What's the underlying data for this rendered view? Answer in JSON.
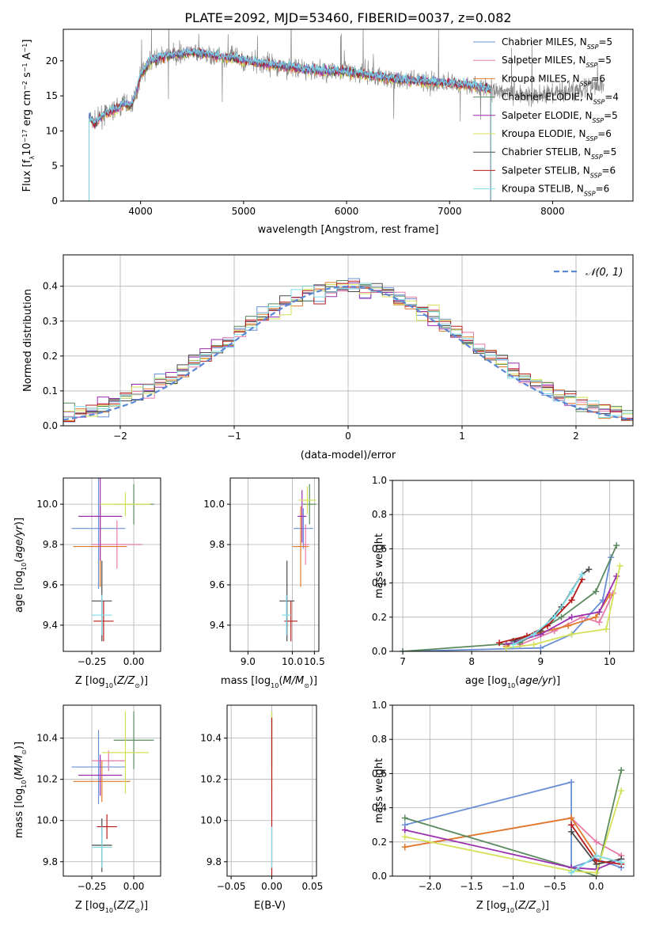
{
  "figure_title": "PLATE=2092, MJD=53460, FIBERID=0037, z=0.082",
  "colors": {
    "chabrier_miles": "#6a8fd8",
    "salpeter_miles": "#e879a8",
    "kroupa_miles": "#e07a2a",
    "chabrier_elodie": "#5b8a5f",
    "salpeter_elodie": "#9b2fae",
    "kroupa_elodie": "#d4e157",
    "chabrier_stelib": "#4a4a4a",
    "salpeter_stelib": "#b71c1c",
    "kroupa_stelib": "#80deea",
    "spectrum": "#888888",
    "normal": "#5a87d6",
    "grid": "#b0b0b0"
  },
  "legend_spectrum": [
    {
      "prefix": "Chabrier MILES, N",
      "sub": "SSP",
      "suffix": "=5",
      "color": "chabrier_miles"
    },
    {
      "prefix": "Salpeter MILES, N",
      "sub": "SSP",
      "suffix": "=5",
      "color": "salpeter_miles"
    },
    {
      "prefix": "Kroupa MILES, N",
      "sub": "SSP",
      "suffix": "=6",
      "color": "kroupa_miles"
    },
    {
      "prefix": "Chabrier ELODIE, N",
      "sub": "SSP",
      "suffix": "=4",
      "color": "chabrier_elodie"
    },
    {
      "prefix": "Salpeter ELODIE, N",
      "sub": "SSP",
      "suffix": "=5",
      "color": "salpeter_elodie"
    },
    {
      "prefix": "Kroupa ELODIE, N",
      "sub": "SSP",
      "suffix": "=6",
      "color": "kroupa_elodie"
    },
    {
      "prefix": "Chabrier STELIB, N",
      "sub": "SSP",
      "suffix": "=5",
      "color": "chabrier_stelib"
    },
    {
      "prefix": "Salpeter STELIB, N",
      "sub": "SSP",
      "suffix": "=6",
      "color": "salpeter_stelib"
    },
    {
      "prefix": "Kroupa STELIB, N",
      "sub": "SSP",
      "suffix": "=6",
      "color": "kroupa_stelib"
    }
  ],
  "chart_data": [
    {
      "id": "spectrum",
      "type": "line",
      "xlabel": "wavelength [Angstrom, rest frame]",
      "ylabel": "Flux [fλ10⁻¹⁷ erg cm⁻² s⁻¹ A⁻¹]",
      "xlim": [
        3250,
        8780
      ],
      "ylim": [
        0,
        24.5
      ],
      "xticks": [
        4000,
        5000,
        6000,
        7000,
        8000
      ],
      "yticks": [
        0,
        5,
        10,
        15,
        20
      ],
      "grid": false,
      "legend_position": "right",
      "continuum": {
        "x": [
          3500,
          3550,
          3650,
          3750,
          3850,
          3900,
          3950,
          4000,
          4050,
          4100,
          4200,
          4300,
          4400,
          4500,
          4600,
          4700,
          4800,
          4900,
          5000,
          5200,
          5400,
          5600,
          5800,
          6000,
          6200,
          6400,
          6600,
          6800,
          7000,
          7200,
          7400,
          7600,
          7800,
          8000,
          8200,
          8400
        ],
        "y": [
          12,
          11,
          12.5,
          13,
          14,
          13.5,
          15,
          18,
          19,
          20,
          20.5,
          20.8,
          21,
          21.2,
          21,
          20.8,
          20.5,
          20.5,
          20,
          19.6,
          19.2,
          18.8,
          18.5,
          18.5,
          18,
          17.5,
          17.2,
          17,
          16.8,
          16.5,
          16,
          15.5,
          15,
          15.3,
          15.8,
          16.5
        ]
      },
      "model_range": [
        3500,
        7400
      ],
      "data_range": [
        3500,
        8500
      ]
    },
    {
      "id": "residuals",
      "type": "histogram",
      "xlabel": "(data-model)/error",
      "ylabel": "Normed distribution",
      "xlim": [
        -2.5,
        2.5
      ],
      "ylim": [
        0,
        0.49
      ],
      "xticks": [
        -2,
        -1,
        0,
        1,
        2
      ],
      "yticks": [
        0,
        0.1,
        0.2,
        0.3,
        0.4
      ],
      "grid": true,
      "bin_width": 0.1,
      "legend_label": "𝒩(0, 1)",
      "legend_position": "top-right"
    },
    {
      "id": "age_vs_Z",
      "type": "scatter",
      "xlabel": "Z [log₁₀(Z/Z⊙)]",
      "ylabel": "age  [log₁₀(age/yr)]",
      "xlim": [
        -0.42,
        0.16
      ],
      "ylim": [
        9.27,
        10.13
      ],
      "xticks": [
        -0.25,
        0.0
      ],
      "ytick_values": [
        9.4,
        9.6,
        9.8,
        10.0
      ],
      "grid": true,
      "points": [
        {
          "model": "chabrier_miles",
          "x": -0.21,
          "xerr": 0.16,
          "y": 9.88,
          "yerr": 0.3
        },
        {
          "model": "salpeter_miles",
          "x": -0.1,
          "xerr": 0.15,
          "y": 9.8,
          "yerr": 0.12
        },
        {
          "model": "kroupa_miles",
          "x": -0.2,
          "xerr": 0.16,
          "y": 9.79,
          "yerr": 0.2
        },
        {
          "model": "chabrier_elodie",
          "x": 0.0,
          "xerr": 0.12,
          "y": 10.0,
          "yerr": 0.1
        },
        {
          "model": "salpeter_elodie",
          "x": -0.2,
          "xerr": 0.13,
          "y": 9.94,
          "yerr": 0.22
        },
        {
          "model": "kroupa_elodie",
          "x": -0.05,
          "xerr": 0.15,
          "y": 10.0,
          "yerr": 0.06
        },
        {
          "model": "chabrier_stelib",
          "x": -0.19,
          "xerr": 0.06,
          "y": 9.52,
          "yerr": 0.2
        },
        {
          "model": "salpeter_stelib",
          "x": -0.18,
          "xerr": 0.06,
          "y": 9.42,
          "yerr": 0.1
        },
        {
          "model": "kroupa_stelib",
          "x": -0.19,
          "xerr": 0.06,
          "y": 9.45,
          "yerr": 0.1
        }
      ]
    },
    {
      "id": "age_vs_mass",
      "type": "scatter",
      "xlabel": "mass [log₁₀(M/M⊙)]",
      "xlim": [
        8.6,
        10.6
      ],
      "ylim": [
        9.27,
        10.13
      ],
      "xticks": [
        9.0,
        10.0,
        10.5
      ],
      "ytick_values": [
        9.4,
        9.6,
        9.8,
        10.0
      ],
      "grid": true,
      "points": [
        {
          "model": "chabrier_miles",
          "x": 10.25,
          "xerr": 0.22,
          "y": 9.88,
          "yerr": 0.1
        },
        {
          "model": "salpeter_miles",
          "x": 10.3,
          "xerr": 0.08,
          "y": 9.8,
          "yerr": 0.1
        },
        {
          "model": "kroupa_miles",
          "x": 10.19,
          "xerr": 0.18,
          "y": 9.79,
          "yerr": 0.2
        },
        {
          "model": "chabrier_elodie",
          "x": 10.39,
          "xerr": 0.15,
          "y": 10.0,
          "yerr": 0.1
        },
        {
          "model": "salpeter_elodie",
          "x": 10.22,
          "xerr": 0.1,
          "y": 9.94,
          "yerr": 0.13
        },
        {
          "model": "kroupa_elodie",
          "x": 10.34,
          "xerr": 0.2,
          "y": 10.02,
          "yerr": 0.07
        },
        {
          "model": "chabrier_stelib",
          "x": 9.88,
          "xerr": 0.17,
          "y": 9.52,
          "yerr": 0.2
        },
        {
          "model": "salpeter_stelib",
          "x": 9.97,
          "xerr": 0.15,
          "y": 9.42,
          "yerr": 0.1
        },
        {
          "model": "kroupa_stelib",
          "x": 9.87,
          "xerr": 0.1,
          "y": 9.45,
          "yerr": 0.1
        }
      ]
    },
    {
      "id": "weight_vs_age",
      "type": "line",
      "xlabel": "age  [log₁₀(age/yr)]",
      "ylabel": "mass weight",
      "xlim": [
        6.85,
        10.35
      ],
      "ylim": [
        0,
        1.0
      ],
      "xticks": [
        7,
        8,
        9,
        10
      ],
      "yticks": [
        0.0,
        0.2,
        0.4,
        0.6,
        0.8,
        1.0
      ],
      "grid": true,
      "series": [
        {
          "model": "chabrier_miles",
          "x": [
            7.0,
            9.0,
            9.45,
            9.9,
            10.02
          ],
          "y": [
            0.0,
            0.02,
            0.1,
            0.3,
            0.55
          ]
        },
        {
          "model": "salpeter_miles",
          "x": [
            8.7,
            9.2,
            9.6,
            9.85,
            10.05
          ],
          "y": [
            0.04,
            0.12,
            0.2,
            0.17,
            0.34
          ]
        },
        {
          "model": "kroupa_miles",
          "x": [
            8.5,
            8.9,
            9.4,
            9.8,
            10.0
          ],
          "y": [
            0.03,
            0.1,
            0.15,
            0.2,
            0.33
          ]
        },
        {
          "model": "chabrier_elodie",
          "x": [
            7.0,
            8.7,
            9.3,
            9.8,
            10.1
          ],
          "y": [
            0.0,
            0.05,
            0.2,
            0.35,
            0.62
          ]
        },
        {
          "model": "salpeter_elodie",
          "x": [
            8.5,
            9.0,
            9.45,
            9.85,
            10.1
          ],
          "y": [
            0.04,
            0.1,
            0.2,
            0.23,
            0.44
          ]
        },
        {
          "model": "kroupa_elodie",
          "x": [
            8.5,
            8.9,
            9.45,
            9.95,
            10.15
          ],
          "y": [
            0.02,
            0.04,
            0.1,
            0.13,
            0.5
          ]
        },
        {
          "model": "chabrier_stelib",
          "x": [
            8.6,
            9.0,
            9.3,
            9.6,
            9.7
          ],
          "y": [
            0.06,
            0.12,
            0.26,
            0.45,
            0.48
          ]
        },
        {
          "model": "salpeter_stelib",
          "x": [
            8.4,
            8.8,
            9.1,
            9.45,
            9.6
          ],
          "y": [
            0.05,
            0.09,
            0.15,
            0.3,
            0.42
          ]
        },
        {
          "model": "kroupa_stelib",
          "x": [
            8.6,
            8.9,
            9.2,
            9.45,
            9.6
          ],
          "y": [
            0.04,
            0.1,
            0.2,
            0.35,
            0.45
          ]
        }
      ]
    },
    {
      "id": "mass_vs_Z",
      "type": "scatter",
      "xlabel": "Z [log₁₀(Z/Z⊙)]",
      "ylabel": "mass [log₁₀(M/M⊙)]",
      "xlim": [
        -0.42,
        0.16
      ],
      "ylim": [
        9.73,
        10.56
      ],
      "xticks": [
        -0.25,
        0.0
      ],
      "ytick_values": [
        9.8,
        10.0,
        10.2,
        10.4
      ],
      "grid": true,
      "points": [
        {
          "model": "chabrier_miles",
          "x": -0.21,
          "xerr": 0.16,
          "y": 10.26,
          "yerr": 0.18
        },
        {
          "model": "salpeter_miles",
          "x": -0.15,
          "xerr": 0.1,
          "y": 10.29,
          "yerr": 0.05
        },
        {
          "model": "kroupa_miles",
          "x": -0.19,
          "xerr": 0.17,
          "y": 10.19,
          "yerr": 0.1
        },
        {
          "model": "chabrier_elodie",
          "x": 0.0,
          "xerr": 0.12,
          "y": 10.39,
          "yerr": 0.14
        },
        {
          "model": "salpeter_elodie",
          "x": -0.2,
          "xerr": 0.13,
          "y": 10.22,
          "yerr": 0.1
        },
        {
          "model": "kroupa_elodie",
          "x": -0.05,
          "xerr": 0.14,
          "y": 10.33,
          "yerr": 0.2
        },
        {
          "model": "chabrier_stelib",
          "x": -0.19,
          "xerr": 0.06,
          "y": 9.88,
          "yerr": 0.13
        },
        {
          "model": "salpeter_stelib",
          "x": -0.16,
          "xerr": 0.06,
          "y": 9.97,
          "yerr": 0.06
        },
        {
          "model": "kroupa_stelib",
          "x": -0.19,
          "xerr": 0.06,
          "y": 9.87,
          "yerr": 0.1
        }
      ]
    },
    {
      "id": "mass_vs_ebv",
      "type": "scatter",
      "xlabel": "E(B-V)",
      "xlim": [
        -0.055,
        0.055
      ],
      "ylim": [
        9.73,
        10.56
      ],
      "xticks": [
        -0.05,
        0.0,
        0.05
      ],
      "ytick_values": [
        9.8,
        10.0,
        10.2,
        10.4
      ],
      "grid": true,
      "points": [
        {
          "model": "chabrier_elodie",
          "x": 0.0,
          "xerr": 0.0,
          "y": 10.39,
          "yerr": 0.14
        },
        {
          "model": "kroupa_elodie",
          "x": 0.0,
          "xerr": 0.0,
          "y": 10.33,
          "yerr": 0.2
        },
        {
          "model": "salpeter_stelib",
          "x": 0.0,
          "xerr": 0.0,
          "y": 10.0,
          "yerr": 0.5
        },
        {
          "model": "kroupa_stelib",
          "x": 0.0,
          "xerr": 0.0,
          "y": 9.87,
          "yerr": 0.1
        }
      ]
    },
    {
      "id": "weight_vs_Z",
      "type": "line",
      "xlabel": "Z [log₁₀(Z/Z⊙)]",
      "ylabel": "mass weight",
      "xlim": [
        -2.45,
        0.45
      ],
      "ylim": [
        0,
        1.0
      ],
      "xticks": [
        -2.0,
        -1.5,
        -1.0,
        -0.5,
        0.0
      ],
      "yticks": [
        0.0,
        0.2,
        0.4,
        0.6,
        0.8,
        1.0
      ],
      "grid": true,
      "series": [
        {
          "model": "chabrier_miles",
          "x": [
            -2.3,
            -0.3,
            -0.3,
            0.0,
            0.3
          ],
          "y": [
            0.3,
            0.55,
            0.05,
            0.1,
            0.05
          ]
        },
        {
          "model": "salpeter_miles",
          "x": [
            -2.3,
            -0.3,
            0.0,
            0.3
          ],
          "y": [
            0.17,
            0.34,
            0.2,
            0.12
          ]
        },
        {
          "model": "kroupa_miles",
          "x": [
            -2.3,
            -0.3,
            0.0,
            0.3
          ],
          "y": [
            0.17,
            0.34,
            0.12,
            0.08
          ]
        },
        {
          "model": "chabrier_elodie",
          "x": [
            -2.3,
            -0.3,
            0.0,
            0.3
          ],
          "y": [
            0.34,
            0.05,
            0.0,
            0.62
          ]
        },
        {
          "model": "salpeter_elodie",
          "x": [
            -2.3,
            -0.3,
            0.0,
            0.3
          ],
          "y": [
            0.27,
            0.05,
            0.04,
            0.1
          ]
        },
        {
          "model": "kroupa_elodie",
          "x": [
            -2.3,
            -0.3,
            0.0,
            0.3
          ],
          "y": [
            0.23,
            0.03,
            0.02,
            0.5
          ]
        },
        {
          "model": "chabrier_stelib",
          "x": [
            -0.3,
            0.0,
            0.3
          ],
          "y": [
            0.26,
            0.07,
            0.1
          ]
        },
        {
          "model": "salpeter_stelib",
          "x": [
            -0.3,
            0.0,
            0.3
          ],
          "y": [
            0.3,
            0.09,
            0.07
          ]
        },
        {
          "model": "kroupa_stelib",
          "x": [
            -0.3,
            0.0,
            0.3
          ],
          "y": [
            0.02,
            0.12,
            0.08
          ]
        }
      ]
    }
  ]
}
